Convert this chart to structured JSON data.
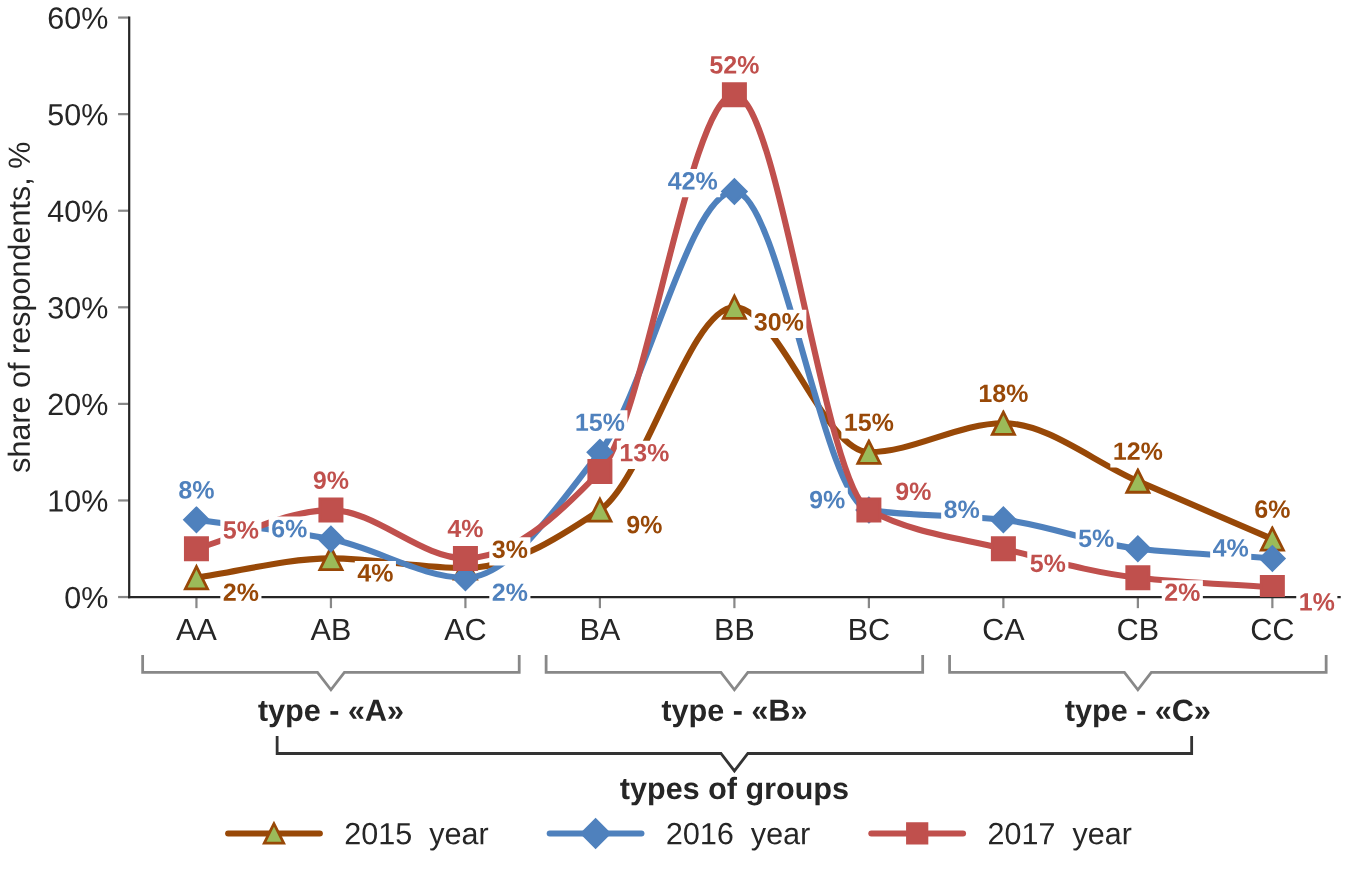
{
  "chart_data": {
    "type": "line",
    "categories": [
      "AA",
      "AB",
      "AC",
      "BA",
      "BB",
      "BC",
      "CA",
      "CB",
      "CC"
    ],
    "ylabel": "share of respondents, %",
    "ylim": [
      0,
      60
    ],
    "yticks": [
      {
        "value": 0,
        "label": "0%"
      },
      {
        "value": 10,
        "label": "10%"
      },
      {
        "value": 20,
        "label": "20%"
      },
      {
        "value": 30,
        "label": "30%"
      },
      {
        "value": 40,
        "label": "40%"
      },
      {
        "value": 50,
        "label": "50%"
      },
      {
        "value": 60,
        "label": "60%"
      }
    ],
    "grid": false,
    "legend": "bottom",
    "annotations": [
      "type - «A»",
      "type - «B»",
      "type - «C»",
      "types of groups"
    ],
    "series": [
      {
        "name": "2015  year",
        "color": "#984807",
        "marker": "triangle",
        "values": [
          2,
          4,
          3,
          9,
          30,
          15,
          18,
          12,
          6
        ],
        "value_labels": [
          "2%",
          "4%",
          "3%",
          "9%",
          "30%",
          "15%",
          "18%",
          "12%",
          "6%"
        ]
      },
      {
        "name": "2016  year",
        "color": "#4f81bd",
        "marker": "diamond",
        "values": [
          8,
          6,
          2,
          15,
          42,
          9,
          8,
          5,
          4
        ],
        "value_labels": [
          "8%",
          "6%",
          "2%",
          "15%",
          "42%",
          "9%",
          "8%",
          "5%",
          "4%"
        ]
      },
      {
        "name": "2017  year",
        "color": "#c0504d",
        "marker": "square",
        "values": [
          5,
          9,
          4,
          13,
          52,
          9,
          5,
          2,
          1
        ],
        "value_labels": [
          "5%",
          "9%",
          "4%",
          "13%",
          "52%",
          "9%",
          "5%",
          "2%",
          "1%"
        ]
      }
    ]
  }
}
